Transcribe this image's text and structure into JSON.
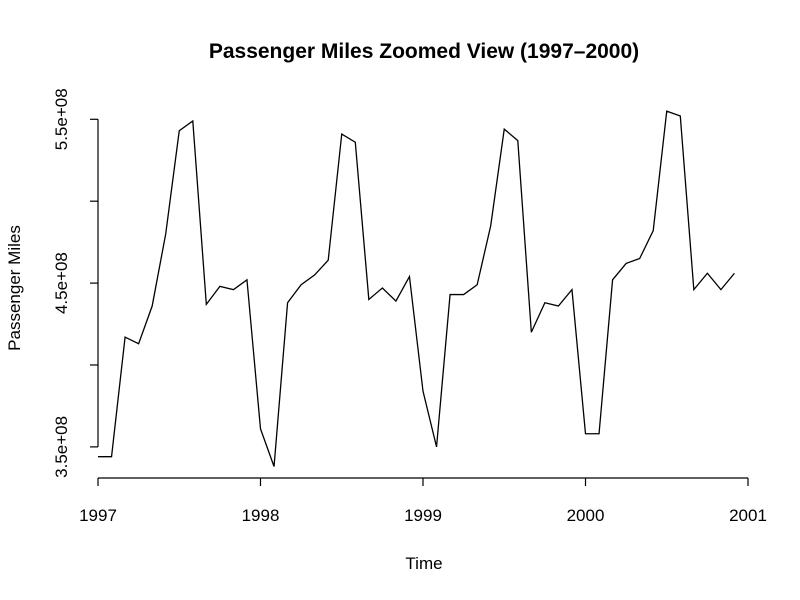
{
  "chart_data": {
    "type": "line",
    "title": "Passenger Miles Zoomed View (1997–2000)",
    "xlabel": "Time",
    "ylabel": "Passenger Miles",
    "xlim": [
      1997,
      2001
    ],
    "ylim": [
      331000000,
      563000000
    ],
    "x_ticks": [
      {
        "value": 1997,
        "label": "1997"
      },
      {
        "value": 1998,
        "label": "1998"
      },
      {
        "value": 1999,
        "label": "1999"
      },
      {
        "value": 2000,
        "label": "2000"
      },
      {
        "value": 2001,
        "label": "2001"
      }
    ],
    "y_ticks": [
      {
        "value": 350000000,
        "label": "3.5e+08"
      },
      {
        "value": 400000000,
        "label": ""
      },
      {
        "value": 450000000,
        "label": "4.5e+08"
      },
      {
        "value": 500000000,
        "label": ""
      },
      {
        "value": 550000000,
        "label": "5.5e+08"
      }
    ],
    "grid": false,
    "series": [
      {
        "color": "#000000",
        "start": 1997,
        "frequency": 12,
        "values": [
          344000000,
          344000000,
          417000000,
          413000000,
          436000000,
          480000000,
          543000000,
          549000000,
          437000000,
          448000000,
          446000000,
          452000000,
          361000000,
          338000000,
          438000000,
          449000000,
          455000000,
          464000000,
          541000000,
          536000000,
          440000000,
          447000000,
          439000000,
          454000000,
          384000000,
          350000000,
          443000000,
          443000000,
          449000000,
          485000000,
          544000000,
          537000000,
          420000000,
          438000000,
          436000000,
          446000000,
          358000000,
          358000000,
          452000000,
          462000000,
          465000000,
          482000000,
          555000000,
          552000000,
          446000000,
          456000000,
          446000000,
          456000000
        ]
      }
    ]
  }
}
